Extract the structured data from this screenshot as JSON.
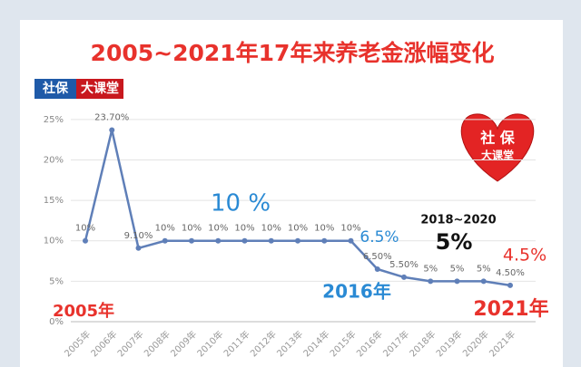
{
  "chart_data": {
    "type": "line",
    "title": "2005~2021年17年来养老金涨幅变化",
    "categories": [
      "2005年",
      "2006年",
      "2007年",
      "2008年",
      "2009年",
      "2010年",
      "2011年",
      "2012年",
      "2013年",
      "2014年",
      "2015年",
      "2016年",
      "2017年",
      "2018年",
      "2019年",
      "2020年",
      "2021年"
    ],
    "series": [
      {
        "name": "养老金涨幅",
        "color": "#5f7fb8",
        "values": [
          10,
          23.7,
          9.1,
          10,
          10,
          10,
          10,
          10,
          10,
          10,
          10,
          6.5,
          5.5,
          5,
          5,
          5,
          4.5
        ],
        "value_labels": [
          "10%",
          "23.70%",
          "9.10%",
          "10%",
          "10%",
          "10%",
          "10%",
          "10%",
          "10%",
          "10%",
          "10%",
          "6.50%",
          "5.50%",
          "5%",
          "5%",
          "5%",
          "4.50%"
        ]
      }
    ],
    "ylim": [
      0,
      27
    ],
    "yticks": [
      {
        "value": 0,
        "label": "0%"
      },
      {
        "value": 5,
        "label": "5%"
      },
      {
        "value": 10,
        "label": "10%"
      },
      {
        "value": 15,
        "label": "15%"
      },
      {
        "value": 20,
        "label": "20%"
      },
      {
        "value": 25,
        "label": "25%"
      }
    ],
    "grid": true,
    "annotations": [
      {
        "text": "10 %",
        "color": "#2a8ad4"
      },
      {
        "text": "6.5%",
        "color": "#2a8ad4"
      },
      {
        "text": "2018~2020",
        "color": "#111111"
      },
      {
        "text": "5%",
        "color": "#111111"
      },
      {
        "text": "4.5%",
        "color": "#e8322c"
      },
      {
        "text": "2005年",
        "color": "#e8322c"
      },
      {
        "text": "2016年",
        "color": "#2a8ad4"
      },
      {
        "text": "2021年",
        "color": "#e8322c"
      }
    ]
  },
  "badge": {
    "left": "社保",
    "right": "大课堂"
  },
  "logo": {
    "line1": "社 保",
    "line2": "大课堂"
  }
}
